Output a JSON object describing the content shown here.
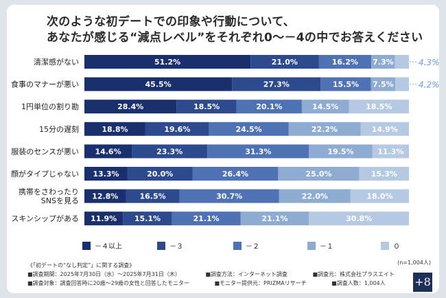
{
  "title_line1": "次のような初デートでの印象や行動について、",
  "title_line2": "あなたが感じる“減点レベル”をそれぞれ0〜－4の中でお答えください",
  "colors": {
    "s4": "#1a2f6e",
    "s3": "#2d4a8f",
    "s2": "#4f72b5",
    "s1": "#8eabd2",
    "s0": "#b5c9e2",
    "outside_label": "#8faed8"
  },
  "chart_data": {
    "type": "bar",
    "orientation": "horizontal",
    "stacked": true,
    "unit": "%",
    "categories": [
      "清潔感がない",
      "食事のマナーが悪い",
      "1円単位の割り勘",
      "15分の遅刻",
      "服装のセンスが悪い",
      "顔がタイプじゃない",
      "携帯をさわったり\nSNSを見る",
      "スキンシップがある"
    ],
    "series": [
      {
        "name": "－４以上",
        "values": [
          51.2,
          45.5,
          28.4,
          18.8,
          14.6,
          13.3,
          12.8,
          11.9
        ]
      },
      {
        "name": "－３",
        "values": [
          21.0,
          27.3,
          18.5,
          19.6,
          23.3,
          20.0,
          16.5,
          15.1
        ]
      },
      {
        "name": "－２",
        "values": [
          16.2,
          15.5,
          20.1,
          24.5,
          31.3,
          26.4,
          30.7,
          21.1
        ]
      },
      {
        "name": "－１",
        "values": [
          7.3,
          7.5,
          14.5,
          22.2,
          19.5,
          25.0,
          22.0,
          21.1
        ]
      },
      {
        "name": "０",
        "values": [
          4.3,
          4.2,
          18.5,
          14.9,
          11.3,
          15.3,
          18.0,
          30.8
        ]
      }
    ],
    "labels": [
      [
        "51.2%",
        "21.0%",
        "16.2%",
        "7.3%",
        "4.3%"
      ],
      [
        "45.5%",
        "27.3%",
        "15.5%",
        "7.5%",
        "4.2%"
      ],
      [
        "28.4%",
        "18.5%",
        "20.1%",
        "14.5%",
        "18.5%"
      ],
      [
        "18.8%",
        "19.6%",
        "24.5%",
        "22.2%",
        "14.9%"
      ],
      [
        "14.6%",
        "23.3%",
        "31.3%",
        "19.5%",
        "11.3%"
      ],
      [
        "13.3%",
        "20.0%",
        "26.4%",
        "25.0%",
        "15.3%"
      ],
      [
        "12.8%",
        "16.5%",
        "30.7%",
        "22.0%",
        "18.0%"
      ],
      [
        "11.9%",
        "15.1%",
        "21.1%",
        "21.1%",
        "30.8%"
      ]
    ],
    "xlim": [
      0,
      100
    ],
    "legend_position": "bottom"
  },
  "respondents": "(n=1,004人)",
  "notes": {
    "survey_title": "《「初デートの“なし判定”」に関する調査》",
    "period": "■調査期間：2025年7月30日（水）〜2025年7月31日（木）",
    "method": "■調査方法：インターネット調査",
    "organizer": "■調査元：株式会社プラスエイト",
    "target": "■調査対象：調査回答時に20歳〜29歳の女性と回答したモニター",
    "provider": "■モニター提供元：PRIZMAリサーチ",
    "sample": "■調査人数：1,004人"
  },
  "logo_text": "+8"
}
